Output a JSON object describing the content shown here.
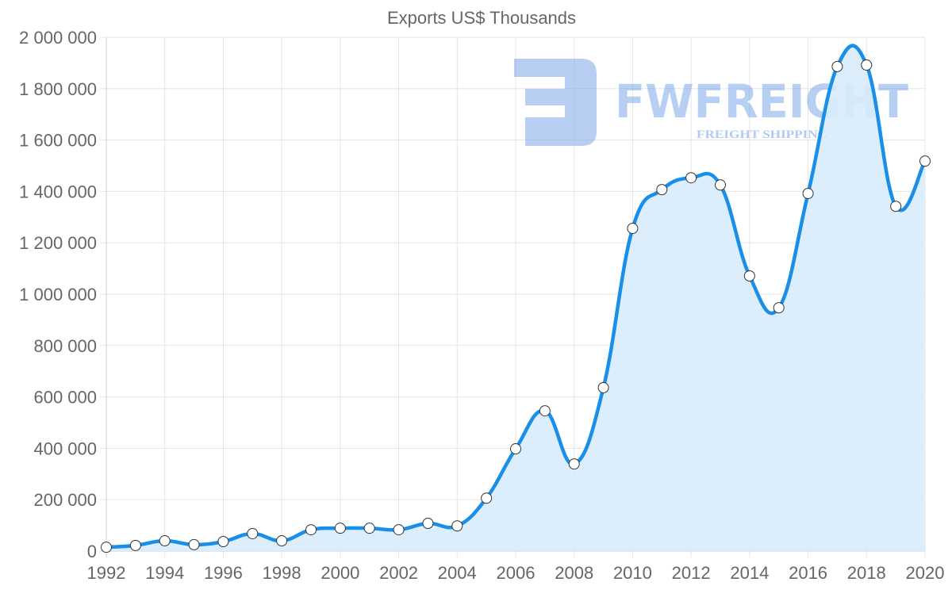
{
  "chart_data": {
    "type": "area",
    "title": "Exports US$ Thousands",
    "xlabel": "",
    "ylabel": "",
    "ylim": [
      0,
      2000000
    ],
    "y_ticks": [
      0,
      200000,
      400000,
      600000,
      800000,
      1000000,
      1200000,
      1400000,
      1600000,
      1800000,
      2000000
    ],
    "y_tick_labels": [
      "0",
      "200 000",
      "400 000",
      "600 000",
      "800 000",
      "1 000 000",
      "1 200 000",
      "1 400 000",
      "1 600 000",
      "1 800 000",
      "2 000 000"
    ],
    "x_tick_labels": [
      "1992",
      "1994",
      "1996",
      "1998",
      "2000",
      "2002",
      "2004",
      "2006",
      "2008",
      "2010",
      "2012",
      "2014",
      "2016",
      "2018",
      "2020"
    ],
    "grid": true,
    "legend": null,
    "categories": [
      1992,
      1993,
      1994,
      1995,
      1996,
      1997,
      1998,
      1999,
      2000,
      2001,
      2002,
      2003,
      2004,
      2005,
      2006,
      2007,
      2008,
      2009,
      2010,
      2011,
      2012,
      2013,
      2014,
      2015,
      2016,
      2017,
      2018,
      2019,
      2020
    ],
    "series": [
      {
        "name": "Exports US$ Thousands",
        "values": [
          15000,
          22000,
          40000,
          25000,
          37000,
          68000,
          40000,
          83000,
          89000,
          89000,
          83000,
          108000,
          98000,
          206000,
          398000,
          546000,
          339000,
          636000,
          1256000,
          1407000,
          1453000,
          1425000,
          1071000,
          947000,
          1392000,
          1886000,
          1892000,
          1342000,
          1518000
        ]
      }
    ]
  },
  "colors": {
    "line": "#1a8fea",
    "fill": "#d8ebfc",
    "point_fill": "#ffffff",
    "point_stroke": "#333333",
    "grid": "#e5e5e5",
    "text": "#666666",
    "watermark": "#7ea8ea"
  },
  "watermark": {
    "brand": "FWFREIGHT",
    "tagline": "FREIGHT SHIPPING"
  }
}
